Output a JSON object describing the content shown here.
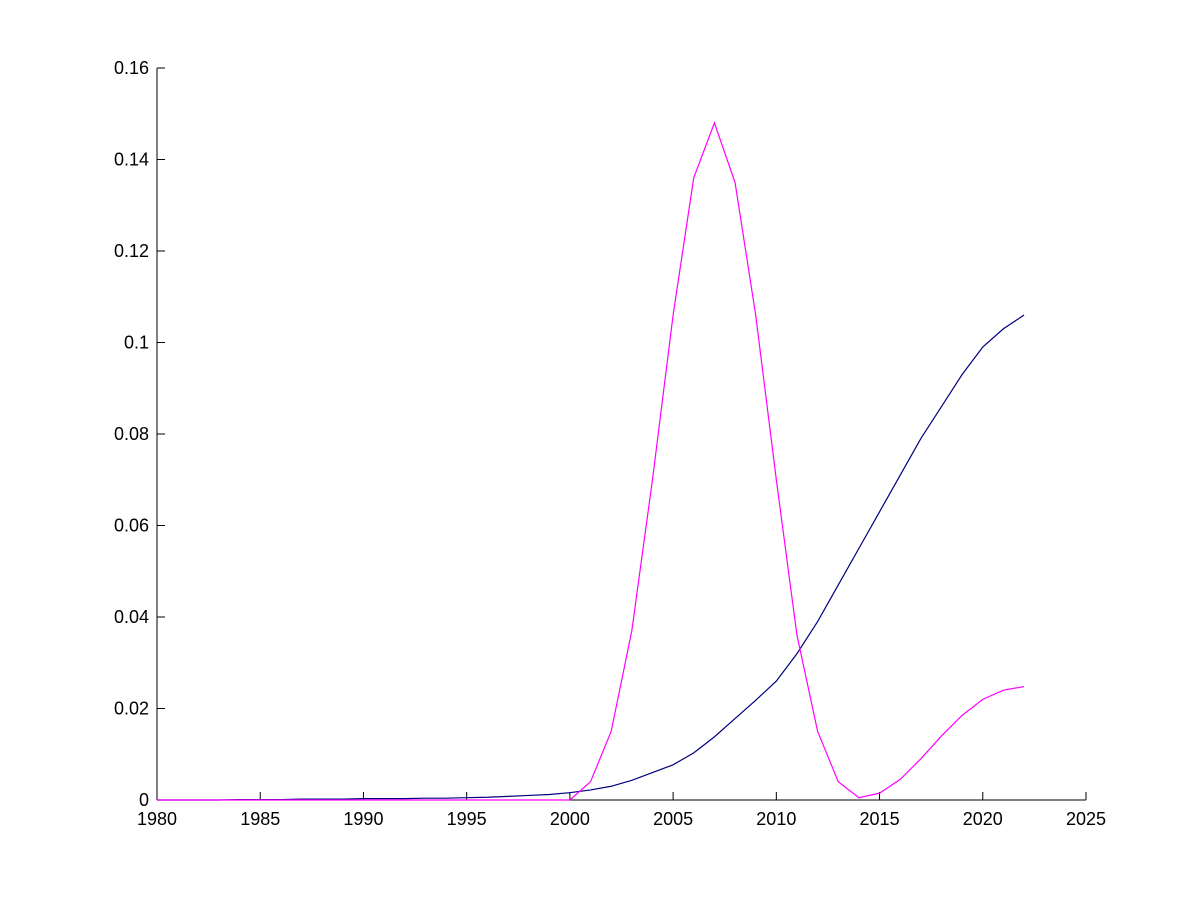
{
  "chart_data": {
    "type": "line",
    "x": [
      1980,
      1981,
      1982,
      1983,
      1984,
      1985,
      1986,
      1987,
      1988,
      1989,
      1990,
      1991,
      1992,
      1993,
      1994,
      1995,
      1996,
      1997,
      1998,
      1999,
      2000,
      2001,
      2002,
      2003,
      2004,
      2005,
      2006,
      2007,
      2008,
      2009,
      2010,
      2011,
      2012,
      2013,
      2014,
      2015,
      2016,
      2017,
      2018,
      2019,
      2020,
      2021,
      2022
    ],
    "series": [
      {
        "color": "#000080",
        "values": [
          0,
          0,
          0,
          0,
          0.0001,
          0.0001,
          0.0001,
          0.0002,
          0.0002,
          0.0002,
          0.0003,
          0.0003,
          0.0003,
          0.0004,
          0.0004,
          0.0005,
          0.0006,
          0.0008,
          0.001,
          0.0012,
          0.0016,
          0.0022,
          0.003,
          0.0043,
          0.006,
          0.0077,
          0.0103,
          0.0138,
          0.0178,
          0.0218,
          0.026,
          0.032,
          0.039,
          0.047,
          0.055,
          0.063,
          0.071,
          0.079,
          0.086,
          0.093,
          0.099,
          0.103,
          0.106
        ]
      },
      {
        "color": "#ff00ff",
        "values": [
          0,
          0,
          0,
          0,
          0,
          0,
          0,
          0,
          0,
          0,
          0,
          0,
          0,
          0,
          0,
          0,
          0,
          0,
          0,
          0,
          0,
          0.004,
          0.015,
          0.037,
          0.07,
          0.106,
          0.136,
          0.148,
          0.135,
          0.106,
          0.07,
          0.036,
          0.015,
          0.004,
          0.0005,
          0.0015,
          0.0045,
          0.009,
          0.014,
          0.0185,
          0.022,
          0.024,
          0.0248
        ]
      }
    ],
    "xlim": [
      1980,
      2025
    ],
    "xticks": [
      1980,
      1985,
      1990,
      1995,
      2000,
      2005,
      2010,
      2015,
      2020,
      2025
    ],
    "ylim": [
      0,
      0.16
    ],
    "yticks": [
      0,
      0.02,
      0.04,
      0.06,
      0.08,
      0.1,
      0.12,
      0.14,
      0.16
    ]
  }
}
